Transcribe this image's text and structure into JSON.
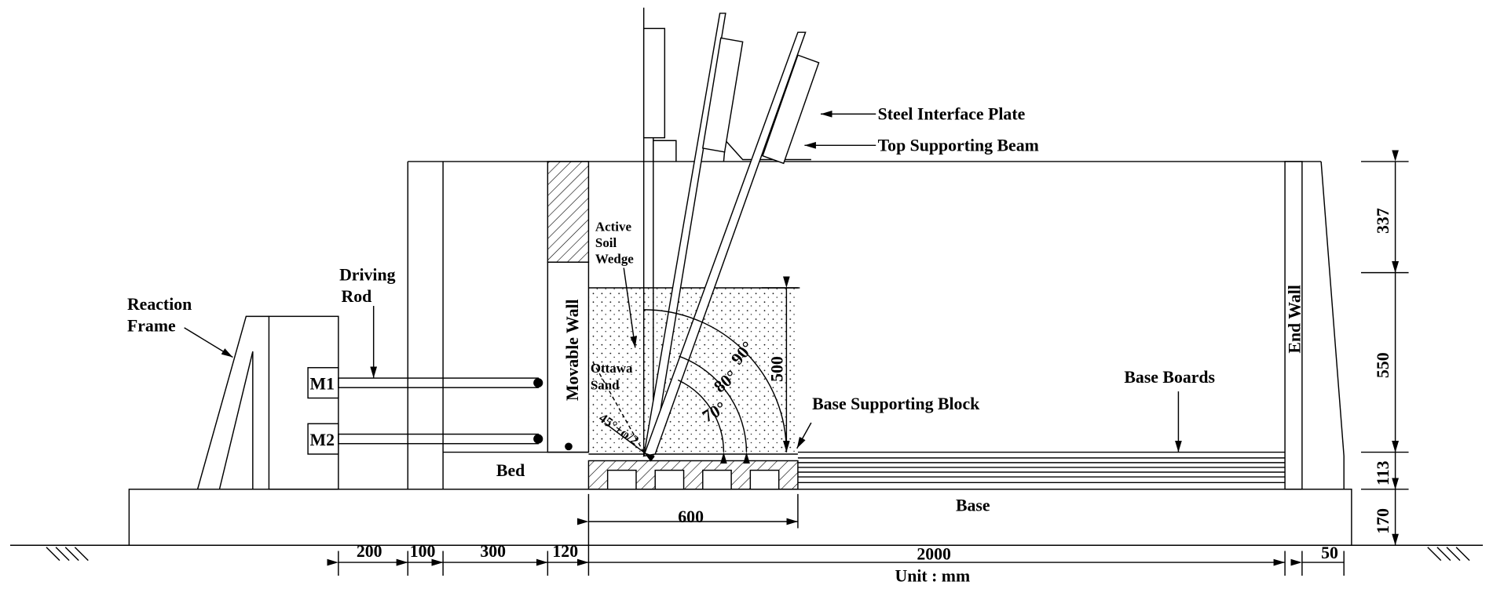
{
  "labels": {
    "steel_interface_plate": "Steel Interface Plate",
    "top_supporting_beam": "Top Supporting Beam",
    "reaction_frame": [
      "Reaction",
      "Frame"
    ],
    "driving_rod": [
      "Driving",
      "Rod"
    ],
    "active_soil_wedge": [
      "Active",
      "Soil",
      "Wedge"
    ],
    "movable_wall": "Movable Wall",
    "ottawa_sand": [
      "Ottawa",
      "Sand"
    ],
    "end_wall": "End Wall",
    "base_boards": "Base Boards",
    "base_supporting_block": "Base Supporting Block",
    "bed": "Bed",
    "base": "Base",
    "m1": "M1",
    "m2": "M2"
  },
  "angles": [
    "90°",
    "80°",
    "70°",
    "45°+φ/2"
  ],
  "dimensions": {
    "horizontal": [
      "200",
      "100",
      "300",
      "120",
      "2000",
      "50"
    ],
    "block_width": "600",
    "vertical": [
      "337",
      "550",
      "113",
      "170"
    ],
    "sand_height": "500",
    "unit": "Unit : mm"
  }
}
